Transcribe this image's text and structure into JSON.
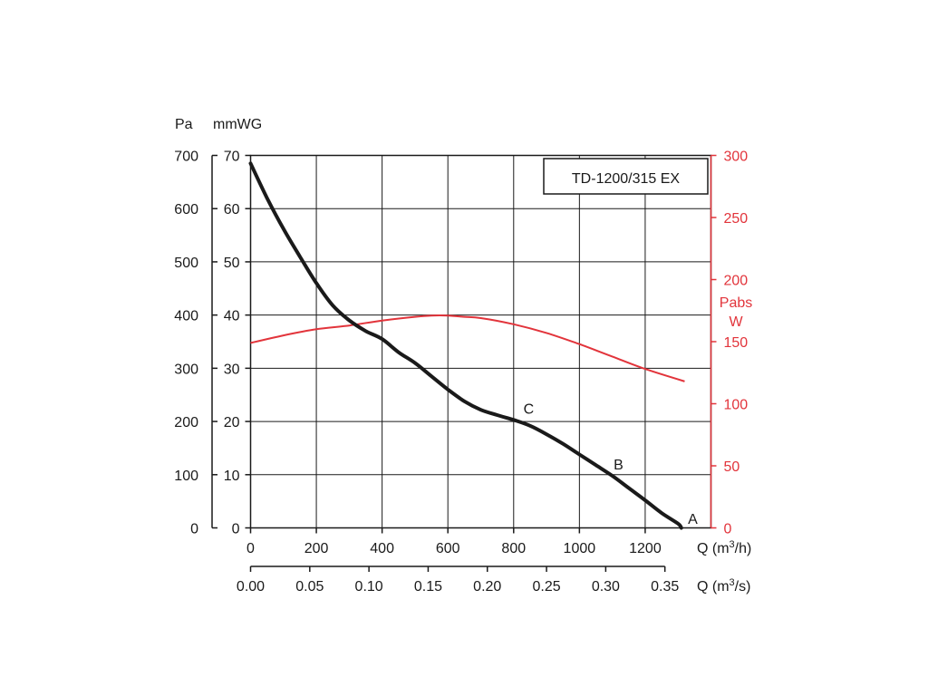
{
  "chart_data": {
    "type": "line",
    "title": "TD-1200/315 EX",
    "colors": {
      "pressure": "#1a1a1a",
      "power": "#e2343b"
    },
    "grid": true,
    "x_axis_primary": {
      "label": "Q (m³/h)",
      "label_base": "Q (m",
      "label_sup": "3",
      "label_end": "/h)",
      "range": [
        0,
        1400
      ],
      "ticks": [
        0,
        200,
        400,
        600,
        800,
        1000,
        1200
      ],
      "tick_labels": [
        "0",
        "200",
        "400",
        "600",
        "800",
        "1000",
        "1200"
      ]
    },
    "x_axis_secondary": {
      "label": "Q (m³/s)",
      "label_base": "Q (m",
      "label_sup": "3",
      "label_end": "/s)",
      "ticks": [
        0,
        0.05,
        0.1,
        0.15,
        0.2,
        0.25,
        0.3,
        0.35
      ],
      "tick_labels": [
        "0.00",
        "0.05",
        "0.10",
        "0.15",
        "0.20",
        "0.25",
        "0.30",
        "0.35"
      ]
    },
    "y_axis_pa": {
      "label": "Pa",
      "range": [
        0,
        700
      ],
      "ticks": [
        0,
        100,
        200,
        300,
        400,
        500,
        600,
        700
      ],
      "tick_labels": [
        "0",
        "100",
        "200",
        "300",
        "400",
        "500",
        "600",
        "700"
      ]
    },
    "y_axis_mmwg": {
      "label": "mmWG",
      "range": [
        0,
        70
      ],
      "ticks": [
        0,
        10,
        20,
        30,
        40,
        50,
        60,
        70
      ],
      "tick_labels": [
        "0",
        "10",
        "20",
        "30",
        "40",
        "50",
        "60",
        "70"
      ]
    },
    "y_axis_power": {
      "label_line1": "Pabs",
      "label_line2": "W",
      "range": [
        0,
        300
      ],
      "ticks": [
        0,
        50,
        100,
        150,
        200,
        250,
        300
      ],
      "tick_labels": [
        "0",
        "50",
        "100",
        "150",
        "200",
        "250",
        "300"
      ]
    },
    "series": [
      {
        "axis": "y_axis_pa",
        "x": [
          0,
          50,
          100,
          150,
          200,
          250,
          300,
          350,
          400,
          450,
          500,
          550,
          600,
          650,
          700,
          750,
          800,
          850,
          900,
          950,
          1000,
          1050,
          1100,
          1150,
          1200,
          1250,
          1300,
          1310
        ],
        "y": [
          685,
          620,
          562,
          510,
          460,
          418,
          390,
          370,
          355,
          330,
          310,
          285,
          260,
          238,
          222,
          212,
          203,
          192,
          176,
          158,
          138,
          118,
          98,
          75,
          52,
          28,
          8,
          0
        ]
      },
      {
        "axis": "y_axis_power",
        "x": [
          0,
          100,
          200,
          300,
          400,
          500,
          550,
          600,
          650,
          700,
          800,
          900,
          1000,
          1100,
          1200,
          1320
        ],
        "y": [
          149,
          155,
          160,
          163,
          167,
          170,
          171,
          171,
          170,
          169,
          164,
          157,
          148,
          138,
          128,
          118
        ]
      }
    ],
    "annotations": [
      {
        "text": "A",
        "x": 1330,
        "y": 18
      },
      {
        "text": "B",
        "x": 1104,
        "y": 120
      },
      {
        "text": "C",
        "x": 830,
        "y": 225
      }
    ]
  }
}
